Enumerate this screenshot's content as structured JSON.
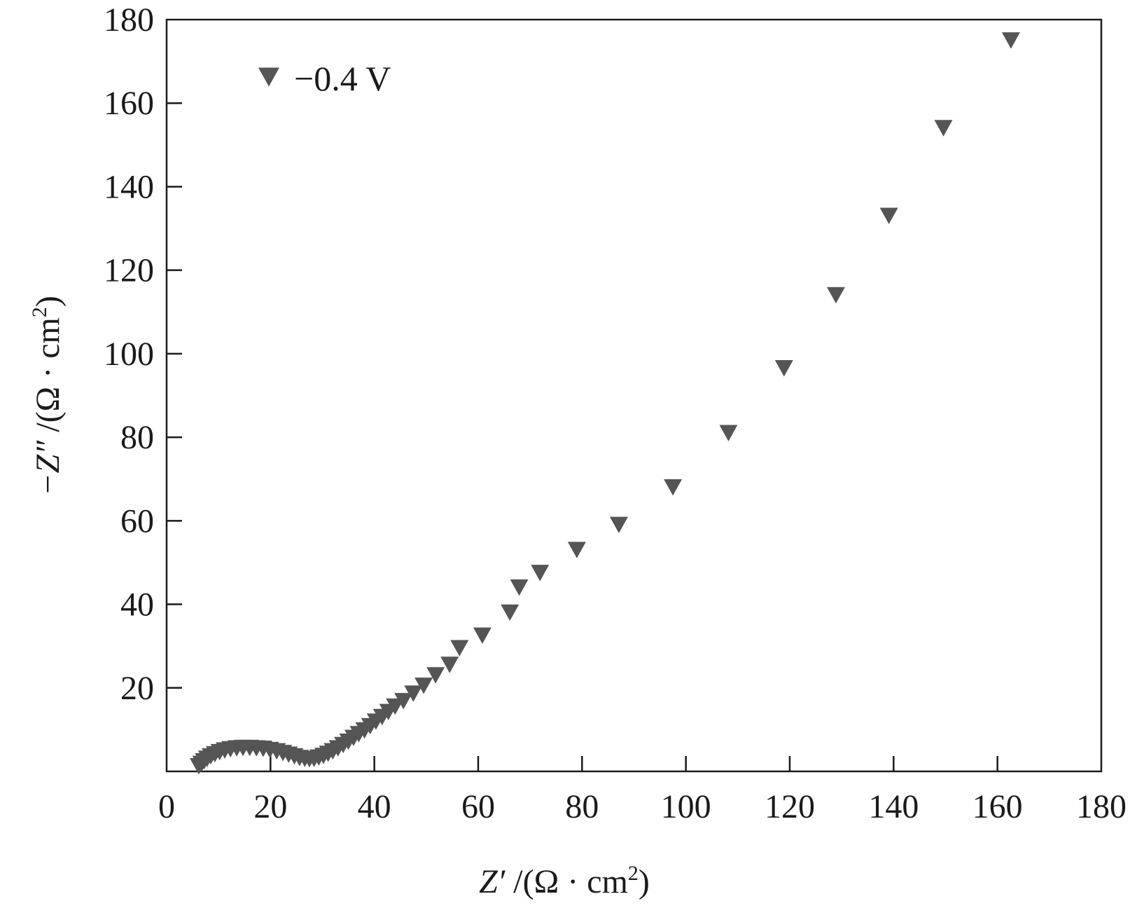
{
  "chart_data": {
    "type": "scatter",
    "xlabel_var": "Z′",
    "xlabel_unit_pre": " /(Ω · cm",
    "xlabel_sup": "2",
    "xlabel_unit_post": ")",
    "ylabel_var": "−Z″",
    "ylabel_unit_pre": " /(Ω · cm",
    "ylabel_sup": "2",
    "ylabel_unit_post": ")",
    "xlim": [
      0,
      180
    ],
    "ylim": [
      0,
      180
    ],
    "x_ticks": [
      0,
      20,
      40,
      60,
      80,
      100,
      120,
      140,
      160,
      180
    ],
    "y_ticks": [
      20,
      40,
      60,
      80,
      100,
      120,
      140,
      160,
      180
    ],
    "legend_position": "top-left",
    "marker_color": "#555555",
    "series": [
      {
        "name": "−0.4 V",
        "marker": "triangle-down",
        "points": [
          [
            6.2,
            1.2
          ],
          [
            6.7,
            1.8
          ],
          [
            7.2,
            2.4
          ],
          [
            7.8,
            3.0
          ],
          [
            8.5,
            3.6
          ],
          [
            9.3,
            4.1
          ],
          [
            10.2,
            4.6
          ],
          [
            11.2,
            5.0
          ],
          [
            12.3,
            5.3
          ],
          [
            13.5,
            5.5
          ],
          [
            14.7,
            5.6
          ],
          [
            16.0,
            5.6
          ],
          [
            17.3,
            5.5
          ],
          [
            18.6,
            5.4
          ],
          [
            19.9,
            5.1
          ],
          [
            21.2,
            4.8
          ],
          [
            22.4,
            4.4
          ],
          [
            23.5,
            4.0
          ],
          [
            24.6,
            3.6
          ],
          [
            25.6,
            3.2
          ],
          [
            26.6,
            3.0
          ],
          [
            27.5,
            2.9
          ],
          [
            28.4,
            3.0
          ],
          [
            29.3,
            3.3
          ],
          [
            30.2,
            3.7
          ],
          [
            31.1,
            4.2
          ],
          [
            32.0,
            4.8
          ],
          [
            33.0,
            5.5
          ],
          [
            34.0,
            6.3
          ],
          [
            35.0,
            7.1
          ],
          [
            36.0,
            8.0
          ],
          [
            37.0,
            8.9
          ],
          [
            38.1,
            9.8
          ],
          [
            39.2,
            10.8
          ],
          [
            40.3,
            11.9
          ],
          [
            41.5,
            13.0
          ],
          [
            42.7,
            14.2
          ],
          [
            44.0,
            15.5
          ],
          [
            45.6,
            16.8
          ],
          [
            47.5,
            18.6
          ],
          [
            49.5,
            20.5
          ],
          [
            51.8,
            23.0
          ],
          [
            54.5,
            25.5
          ],
          [
            56.4,
            29.5
          ],
          [
            60.8,
            32.5
          ],
          [
            66.1,
            38.0
          ],
          [
            67.9,
            44.0
          ],
          [
            71.9,
            47.5
          ],
          [
            79.0,
            53.0
          ],
          [
            87.1,
            59.0
          ],
          [
            97.5,
            68.0
          ],
          [
            108.2,
            81.0
          ],
          [
            118.9,
            96.5
          ],
          [
            128.9,
            114.0
          ],
          [
            139.1,
            133.0
          ],
          [
            149.6,
            154.0
          ],
          [
            162.6,
            175.0
          ]
        ]
      }
    ]
  }
}
